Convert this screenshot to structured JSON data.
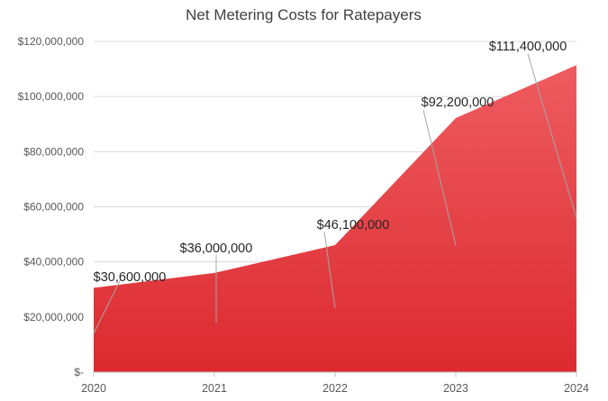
{
  "chart_data": {
    "type": "area",
    "title": "Net Metering Costs for Ratepayers",
    "categories": [
      "2020",
      "2021",
      "2022",
      "2023",
      "2024"
    ],
    "values": [
      30600000,
      36000000,
      46100000,
      92200000,
      111400000
    ],
    "data_labels": [
      "$30,600,000",
      "$36,000,000",
      "$46,100,000",
      "$92,200,000",
      "$111,400,000"
    ],
    "y_ticks": [
      0,
      20000000,
      40000000,
      60000000,
      80000000,
      100000000,
      120000000
    ],
    "y_tick_labels": [
      "$-",
      "$20,000,000",
      "$40,000,000",
      "$60,000,000",
      "$80,000,000",
      "$100,000,000",
      "$120,000,000"
    ],
    "ylim": [
      0,
      120000000
    ],
    "xlabel": "",
    "ylabel": "",
    "grid": true,
    "legend": "none",
    "colors": {
      "area_top": "#ee5c60",
      "area_bottom": "#dc2a30"
    }
  }
}
